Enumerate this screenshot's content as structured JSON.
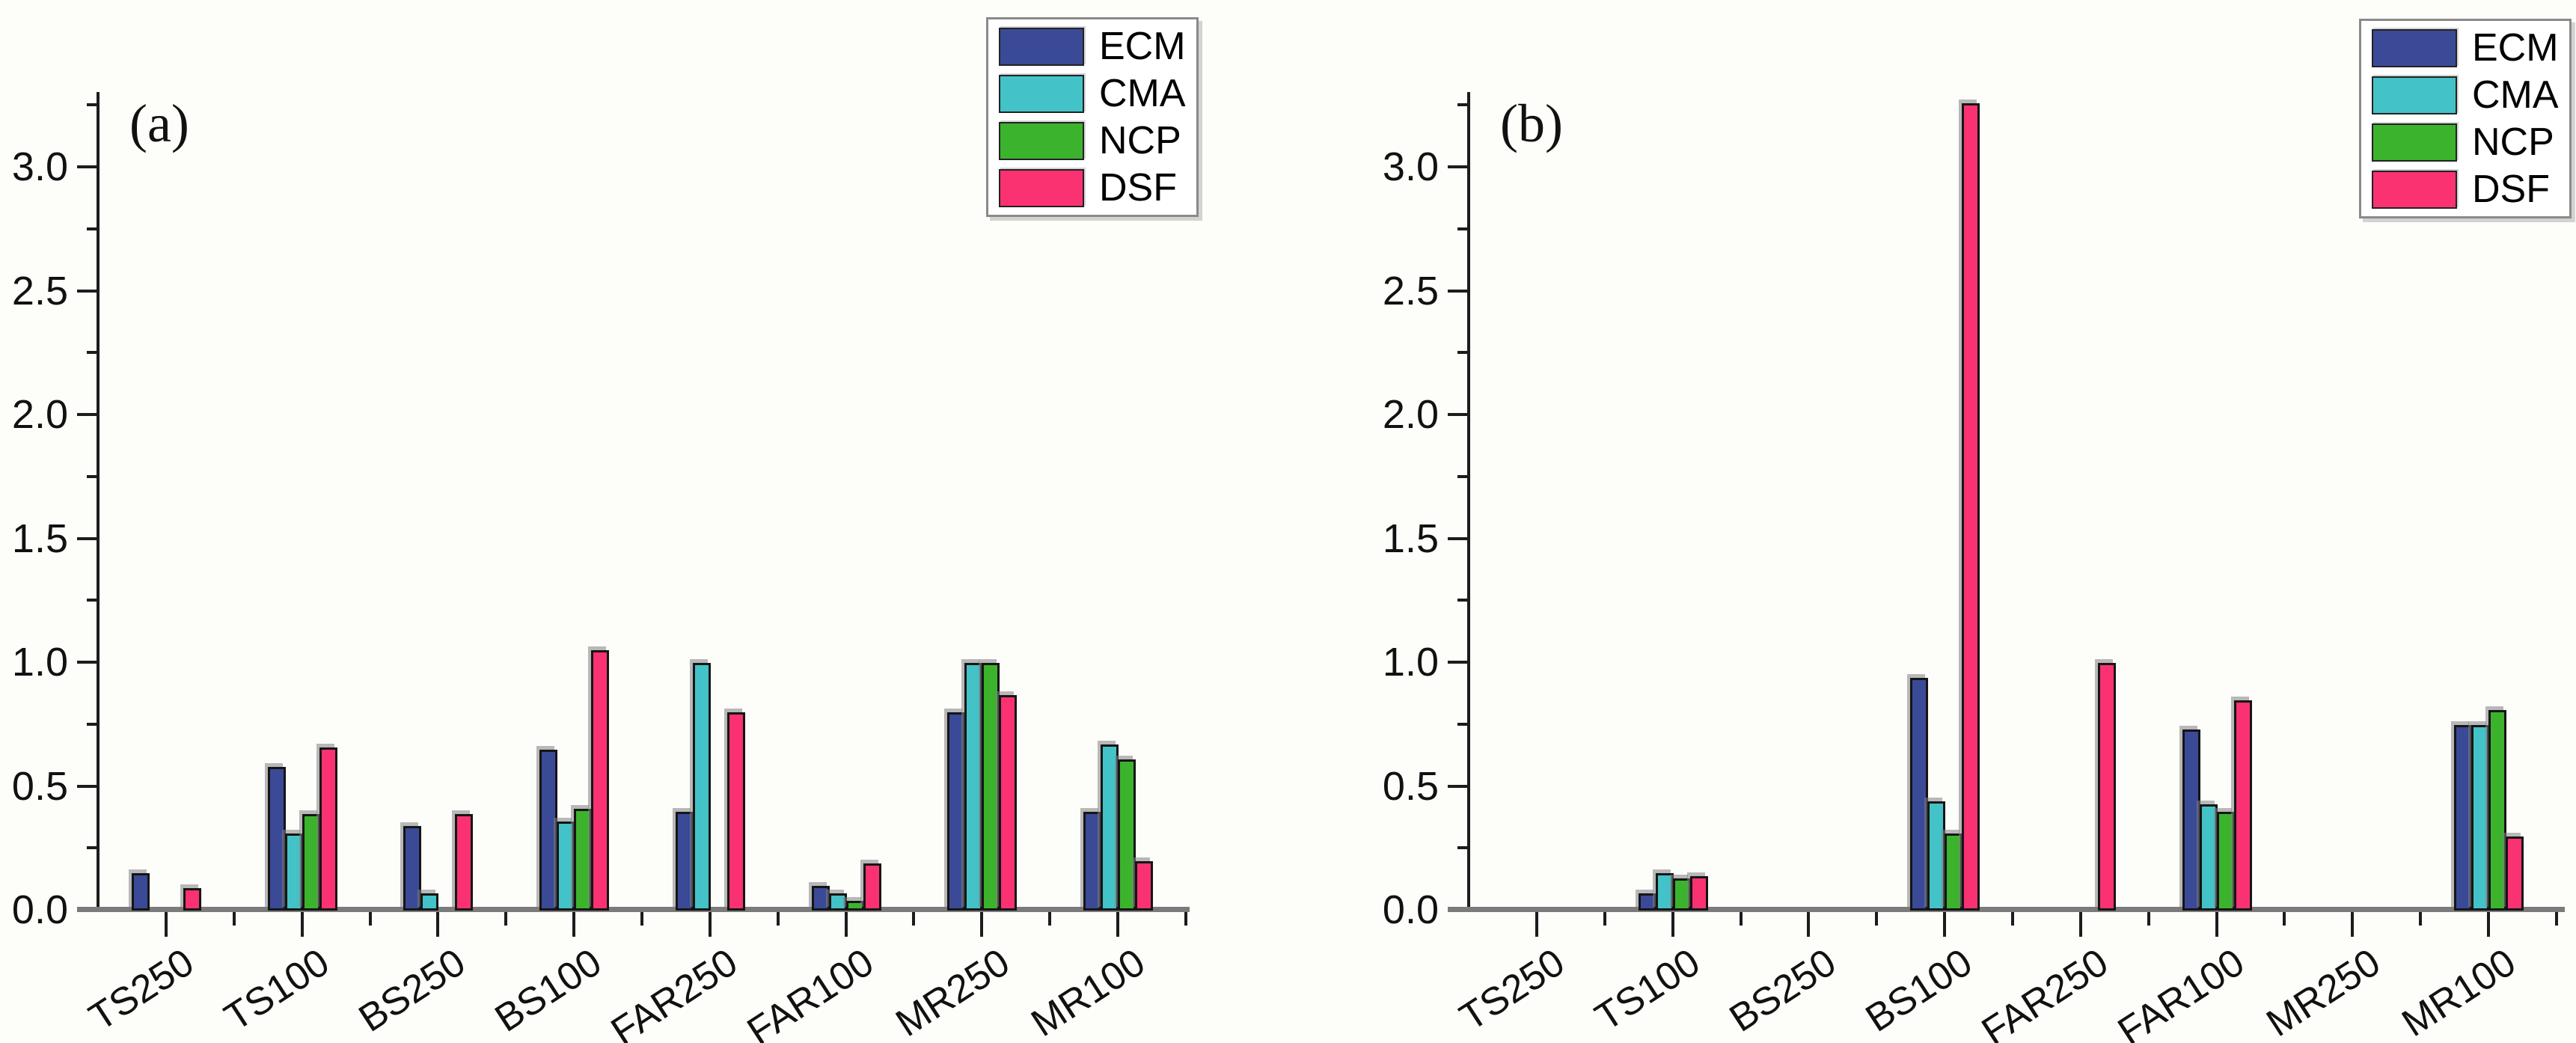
{
  "figure": {
    "background": "#fdfdfa",
    "panel_labels": [
      "(a)",
      "(b)"
    ]
  },
  "legend": {
    "entries": [
      {
        "label": "ECM",
        "color": "#3b4a97"
      },
      {
        "label": "CMA",
        "color": "#43c3c7"
      },
      {
        "label": "NCP",
        "color": "#3cb32d"
      },
      {
        "label": "DSF",
        "color": "#fa3272"
      }
    ]
  },
  "chart_data": [
    {
      "type": "bar",
      "panel_label": "(a)",
      "title": "",
      "xlabel": "",
      "ylabel": "",
      "categories": [
        "TS250",
        "TS100",
        "BS250",
        "BS100",
        "FAR250",
        "FAR100",
        "MR250",
        "MR100"
      ],
      "series": [
        {
          "name": "ECM",
          "color": "#3b4a97",
          "values": [
            0.15,
            0.58,
            0.34,
            0.65,
            0.4,
            0.1,
            0.8,
            0.4
          ]
        },
        {
          "name": "CMA",
          "color": "#43c3c7",
          "values": [
            0,
            0.31,
            0.07,
            0.36,
            1.0,
            0.07,
            1.0,
            0.67
          ]
        },
        {
          "name": "NCP",
          "color": "#3cb32d",
          "values": [
            0,
            0.39,
            0,
            0.41,
            0,
            0.04,
            1.0,
            0.61
          ]
        },
        {
          "name": "DSF",
          "color": "#fa3272",
          "values": [
            0.09,
            0.66,
            0.39,
            1.05,
            0.8,
            0.19,
            0.87,
            0.2
          ]
        }
      ],
      "ylim": [
        0,
        3.3
      ],
      "ytick_labels": [
        "0.0",
        "0.5",
        "1.0",
        "1.5",
        "2.0",
        "2.5",
        "3.0"
      ],
      "minor_tick_step": 0.25,
      "grid": "off",
      "legend_position": "top-right"
    },
    {
      "type": "bar",
      "panel_label": "(b)",
      "title": "",
      "xlabel": "",
      "ylabel": "",
      "categories": [
        "TS250",
        "TS100",
        "BS250",
        "BS100",
        "FAR250",
        "FAR100",
        "MR250",
        "MR100"
      ],
      "series": [
        {
          "name": "ECM",
          "color": "#3b4a97",
          "values": [
            0,
            0.07,
            0,
            0.94,
            0,
            0.73,
            0,
            0.75
          ]
        },
        {
          "name": "CMA",
          "color": "#43c3c7",
          "values": [
            0,
            0.15,
            0,
            0.44,
            0,
            0.43,
            0,
            0.75
          ]
        },
        {
          "name": "NCP",
          "color": "#3cb32d",
          "values": [
            0,
            0.13,
            0,
            0.31,
            0,
            0.4,
            0,
            0.81
          ]
        },
        {
          "name": "DSF",
          "color": "#fa3272",
          "values": [
            0,
            0.14,
            0,
            3.26,
            1.0,
            0.85,
            0,
            0.3
          ]
        }
      ],
      "ylim": [
        0,
        3.3
      ],
      "ytick_labels": [
        "0.0",
        "0.5",
        "1.0",
        "1.5",
        "2.0",
        "2.5",
        "3.0"
      ],
      "minor_tick_step": 0.25,
      "grid": "off",
      "legend_position": "top-right"
    }
  ]
}
